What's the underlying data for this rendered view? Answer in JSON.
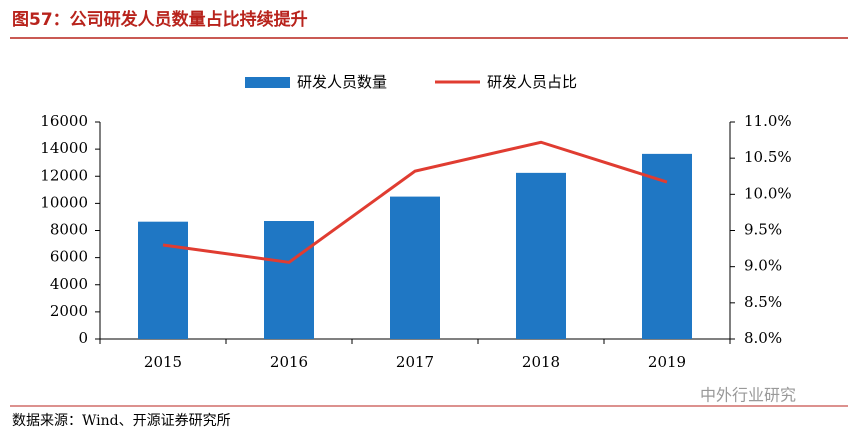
{
  "chart_data": {
    "type": "combo",
    "title": "图57：公司研发人员数量占比持续提升",
    "categories": [
      "2015",
      "2016",
      "2017",
      "2018",
      "2019"
    ],
    "series": [
      {
        "name": "研发人员数量",
        "type": "bar",
        "color": "#1f77c4",
        "values": [
          8650,
          8700,
          10500,
          12250,
          13650
        ]
      },
      {
        "name": "研发人员占比",
        "type": "line",
        "axis": "y2",
        "color": "#e03c31",
        "values": [
          9.3,
          9.06,
          10.32,
          10.72,
          10.17
        ]
      }
    ],
    "ylim": [
      0,
      16000
    ],
    "yticks": [
      0,
      2000,
      4000,
      6000,
      8000,
      10000,
      12000,
      14000,
      16000
    ],
    "y2lim": [
      8.0,
      11.0
    ],
    "y2ticks": [
      {
        "value": 8.0,
        "label": "8.0%"
      },
      {
        "value": 8.5,
        "label": "8.5%"
      },
      {
        "value": 9.0,
        "label": "9.0%"
      },
      {
        "value": 9.5,
        "label": "9.5%"
      },
      {
        "value": 10.0,
        "label": "10.0%"
      },
      {
        "value": 10.5,
        "label": "10.5%"
      },
      {
        "value": 11.0,
        "label": "11.0%"
      }
    ],
    "legend": "top",
    "source": "数据来源：Wind、开源证券研究所",
    "watermark": "中外行业研究"
  }
}
